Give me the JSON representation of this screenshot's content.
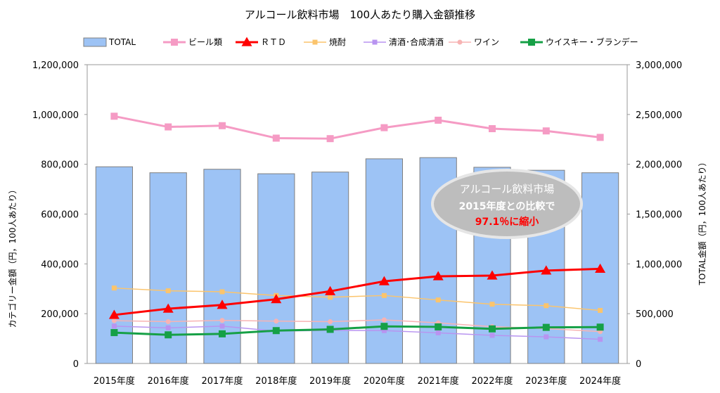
{
  "chart_data": {
    "type": "bar+line",
    "title": "アルコール飲料市場　100人あたり購入金額推移",
    "categories": [
      "2015年度",
      "2016年度",
      "2017年度",
      "2018年度",
      "2019年度",
      "2020年度",
      "2021年度",
      "2022年度",
      "2023年度",
      "2024年度"
    ],
    "left_axis": {
      "label": "カテゴリー金額（円，100人あたり）",
      "ylim": [
        0,
        1200000
      ],
      "ticks": [
        "0",
        "200,000",
        "400,000",
        "600,000",
        "800,000",
        "1,000,000",
        "1,200,000"
      ]
    },
    "right_axis": {
      "label": "TOTAL金額（円，100人あたり）",
      "ylim": [
        0,
        3000000
      ],
      "ticks": [
        "0",
        "500,000",
        "1,000,000",
        "1,500,000",
        "2,000,000",
        "2,500,000",
        "3,000,000"
      ]
    },
    "bar_series": {
      "name": "TOTAL",
      "axis": "right",
      "color": "#9dc3f5",
      "values": [
        1975000,
        1915000,
        1950000,
        1905000,
        1922000,
        2055000,
        2067000,
        1970000,
        1940000,
        1915000
      ]
    },
    "line_series": [
      {
        "name": "ビール類",
        "color": "#f59bc4",
        "marker": "square",
        "width": 3,
        "values": [
          993000,
          950000,
          955000,
          905000,
          903000,
          947000,
          977000,
          943000,
          934000,
          908000
        ]
      },
      {
        "name": "ＲＴＤ",
        "color": "#ff0000",
        "marker": "triangle",
        "width": 3,
        "values": [
          195000,
          220000,
          235000,
          258000,
          290000,
          330000,
          350000,
          353000,
          373000,
          380000
        ]
      },
      {
        "name": "焼酎",
        "color": "#fbc46c",
        "marker": "square",
        "width": 1.5,
        "values": [
          303000,
          292000,
          288000,
          273000,
          266000,
          273000,
          255000,
          238000,
          232000,
          213000
        ]
      },
      {
        "name": "清酒･合成清酒",
        "color": "#b894f0",
        "marker": "square",
        "width": 1.5,
        "values": [
          150000,
          143000,
          150000,
          130000,
          133000,
          132000,
          123000,
          113000,
          107000,
          97000
        ]
      },
      {
        "name": "ワイン",
        "color": "#f7b3b3",
        "marker": "circle",
        "width": 1.5,
        "values": [
          172000,
          168000,
          173000,
          170000,
          168000,
          175000,
          163000,
          148000,
          140000,
          128000
        ]
      },
      {
        "name": "ウイスキー・ブランデー",
        "color": "#16a046",
        "marker": "square",
        "width": 3,
        "values": [
          124000,
          115000,
          119000,
          132000,
          137000,
          149000,
          147000,
          139000,
          145000,
          146000
        ]
      }
    ],
    "annotation": {
      "line1": "アルコール飲料市場",
      "line2": "2015年度との比較で",
      "line3": "97.1％に縮小",
      "line3_color": "#ff0000"
    },
    "legend_position": "top",
    "grid": false
  }
}
